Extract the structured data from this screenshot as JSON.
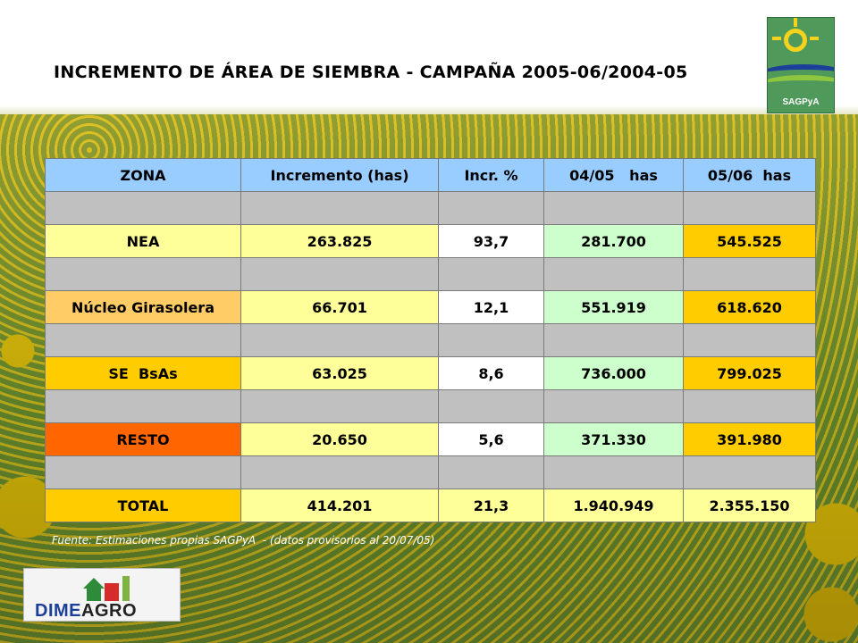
{
  "title": "INCREMENTO DE ÁREA DE SIEMBRA - CAMPAÑA 2005-06/2004-05",
  "logos": {
    "top_right": "SAGPyA",
    "bottom_left_part1": "DIME",
    "bottom_left_part2": "AGRO"
  },
  "table": {
    "headers": [
      "ZONA",
      "Incremento (has)",
      "Incr. %",
      "04/05   has",
      "05/06  has"
    ],
    "rows": [
      {
        "zona": "NEA",
        "incremento": "263.825",
        "incr_pct": "93,7",
        "has_0405": "281.700",
        "has_0506": "545.525"
      },
      {
        "zona": "Núcleo Girasolera",
        "incremento": "66.701",
        "incr_pct": "12,1",
        "has_0405": "551.919",
        "has_0506": "618.620"
      },
      {
        "zona": "SE  BsAs",
        "incremento": "63.025",
        "incr_pct": "8,6",
        "has_0405": "736.000",
        "has_0506": "799.025"
      },
      {
        "zona": "RESTO",
        "incremento": "20.650",
        "incr_pct": "5,6",
        "has_0405": "371.330",
        "has_0506": "391.980"
      },
      {
        "zona": "TOTAL",
        "incremento": "414.201",
        "incr_pct": "21,3",
        "has_0405": "1.940.949",
        "has_0506": "2.355.150"
      }
    ]
  },
  "source": "Fuente: Estimaciones propias SAGPyA  - (datos provisorios al 20/07/05)",
  "colors": {
    "header": "#99ccff",
    "spacer": "#c0c0c0",
    "light_yellow": "#ffff99",
    "gold": "#ffcc00",
    "peach": "#ffcc66",
    "orange": "#ff6600",
    "mint": "#ccffcc"
  }
}
